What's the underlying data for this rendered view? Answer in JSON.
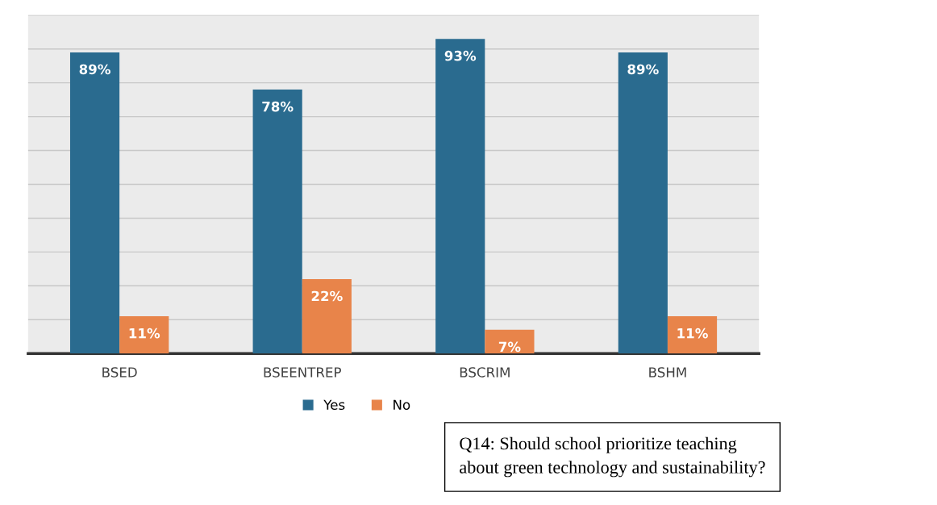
{
  "chart_data": {
    "type": "bar",
    "categories": [
      "BSED",
      "BSEENTREP",
      "BSCRIM",
      "BSHM"
    ],
    "series": [
      {
        "name": "Yes",
        "color": "#2a6b8f",
        "values": [
          89,
          78,
          93,
          89
        ],
        "value_labels": [
          "89%",
          "78%",
          "93%",
          "89%"
        ]
      },
      {
        "name": "No",
        "color": "#e8844a",
        "values": [
          11,
          22,
          7,
          11
        ],
        "value_labels": [
          "11%",
          "22%",
          "7%",
          "11%"
        ]
      }
    ],
    "ylim": [
      0,
      100
    ],
    "yticks": [
      {
        "value": 0,
        "label": null
      },
      {
        "value": 10,
        "label": null
      },
      {
        "value": 20,
        "label": null
      },
      {
        "value": 30,
        "label": null
      },
      {
        "value": 40,
        "label": null
      },
      {
        "value": 50,
        "label": null
      },
      {
        "value": 60,
        "label": null
      },
      {
        "value": 70,
        "label": null
      },
      {
        "value": 80,
        "label": null
      },
      {
        "value": 90,
        "label": null
      },
      {
        "value": 100,
        "label": null
      }
    ],
    "tick_labels": "x",
    "grid": "y",
    "legend": "bottom",
    "annotations": [
      "Q14: Should school prioritize teaching\nabout green technology and sustainability?"
    ]
  }
}
